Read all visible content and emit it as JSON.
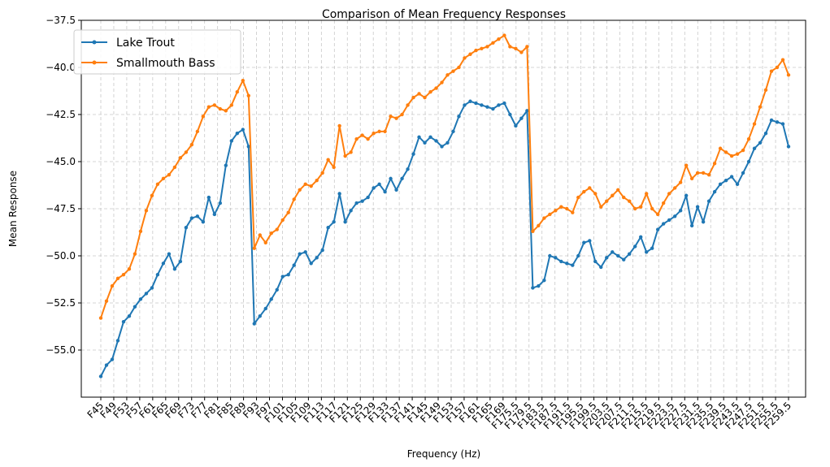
{
  "chart_data": {
    "type": "line",
    "title": "Comparison of Mean Frequency Responses",
    "xlabel": "Frequency (Hz)",
    "ylabel": "Mean Response",
    "ylim": [
      -57.5,
      -37.5
    ],
    "yticks": [
      -55.0,
      -52.5,
      -50.0,
      -47.5,
      -45.0,
      -42.5,
      -40.0,
      -37.5
    ],
    "ytick_labels": [
      "−55.0",
      "−52.5",
      "−50.0",
      "−47.5",
      "−45.0",
      "−42.5",
      "−40.0",
      "−37.5"
    ],
    "xtick_labels": [
      "F45",
      "F49",
      "F53",
      "F57",
      "F61",
      "F65",
      "F69",
      "F73",
      "F77",
      "F81",
      "F85",
      "F89",
      "F93",
      "F97",
      "F101",
      "F105",
      "F109",
      "F113",
      "F117",
      "F121",
      "F125",
      "F129",
      "F133",
      "F137",
      "F141",
      "F145",
      "F149",
      "F153",
      "F157",
      "F161",
      "F165",
      "F169",
      "F175.5",
      "F179.5",
      "F183.5",
      "F187.5",
      "F191.5",
      "F195.5",
      "F199.5",
      "F203.5",
      "F207.5",
      "F211.5",
      "F215.5",
      "F219.5",
      "F223.5",
      "F227.5",
      "F231.5",
      "F235.5",
      "F239.5",
      "F243.5",
      "F247.5",
      "F251.5",
      "F255.5",
      "F259.5"
    ],
    "grid": true,
    "legend_position": "top-left",
    "series": [
      {
        "name": "Lake Trout",
        "color": "#1f77b4",
        "values": [
          -56.4,
          -55.8,
          -55.5,
          -54.5,
          -53.5,
          -53.2,
          -52.7,
          -52.3,
          -52.0,
          -51.7,
          -51.0,
          -50.4,
          -49.9,
          -50.7,
          -50.3,
          -48.5,
          -48.0,
          -47.9,
          -48.2,
          -46.9,
          -47.8,
          -47.2,
          -45.2,
          -43.9,
          -43.5,
          -43.3,
          -44.2,
          -53.6,
          -53.2,
          -52.8,
          -52.3,
          -51.8,
          -51.1,
          -51.0,
          -50.5,
          -49.9,
          -49.8,
          -50.4,
          -50.1,
          -49.7,
          -48.5,
          -48.2,
          -46.7,
          -48.2,
          -47.6,
          -47.2,
          -47.1,
          -46.9,
          -46.4,
          -46.2,
          -46.6,
          -45.9,
          -46.5,
          -45.9,
          -45.4,
          -44.6,
          -43.7,
          -44.0,
          -43.7,
          -43.9,
          -44.2,
          -44.0,
          -43.4,
          -42.6,
          -42.0,
          -41.8,
          -41.9,
          -42.0,
          -42.1,
          -42.2,
          -42.0,
          -41.9,
          -42.5,
          -43.1,
          -42.7,
          -42.3,
          -51.7,
          -51.6,
          -51.3,
          -50.0,
          -50.1,
          -50.3,
          -50.4,
          -50.5,
          -50.0,
          -49.3,
          -49.2,
          -50.3,
          -50.6,
          -50.1,
          -49.8,
          -50.0,
          -50.2,
          -49.9,
          -49.5,
          -49.0,
          -49.8,
          -49.6,
          -48.6,
          -48.3,
          -48.1,
          -47.9,
          -47.6,
          -46.8,
          -48.4,
          -47.4,
          -48.2,
          -47.1,
          -46.6,
          -46.2,
          -46.0,
          -45.8,
          -46.2,
          -45.6,
          -45.0,
          -44.3,
          -44.0,
          -43.5,
          -42.8,
          -42.9,
          -43.0,
          -44.2
        ]
      },
      {
        "name": "Smallmouth Bass",
        "color": "#ff7f0e",
        "values": [
          -53.3,
          -52.4,
          -51.6,
          -51.2,
          -51.0,
          -50.7,
          -49.9,
          -48.7,
          -47.6,
          -46.8,
          -46.2,
          -45.9,
          -45.7,
          -45.3,
          -44.8,
          -44.5,
          -44.1,
          -43.4,
          -42.6,
          -42.1,
          -42.0,
          -42.2,
          -42.3,
          -42.0,
          -41.3,
          -40.7,
          -41.5,
          -49.6,
          -48.9,
          -49.3,
          -48.8,
          -48.6,
          -48.1,
          -47.7,
          -47.0,
          -46.5,
          -46.2,
          -46.3,
          -46.0,
          -45.6,
          -44.9,
          -45.3,
          -43.1,
          -44.7,
          -44.5,
          -43.8,
          -43.6,
          -43.8,
          -43.5,
          -43.4,
          -43.4,
          -42.6,
          -42.7,
          -42.5,
          -42.0,
          -41.6,
          -41.4,
          -41.6,
          -41.3,
          -41.1,
          -40.8,
          -40.4,
          -40.2,
          -40.0,
          -39.5,
          -39.3,
          -39.1,
          -39.0,
          -38.9,
          -38.7,
          -38.5,
          -38.3,
          -38.9,
          -39.0,
          -39.2,
          -38.9,
          -48.7,
          -48.4,
          -48.0,
          -47.8,
          -47.6,
          -47.4,
          -47.5,
          -47.7,
          -46.9,
          -46.6,
          -46.4,
          -46.7,
          -47.4,
          -47.1,
          -46.8,
          -46.5,
          -46.9,
          -47.1,
          -47.5,
          -47.4,
          -46.7,
          -47.5,
          -47.8,
          -47.2,
          -46.7,
          -46.4,
          -46.1,
          -45.2,
          -45.9,
          -45.6,
          -45.6,
          -45.7,
          -45.1,
          -44.3,
          -44.5,
          -44.7,
          -44.6,
          -44.4,
          -43.8,
          -43.0,
          -42.1,
          -41.2,
          -40.2,
          -40.0,
          -39.6,
          -40.4
        ]
      }
    ]
  }
}
